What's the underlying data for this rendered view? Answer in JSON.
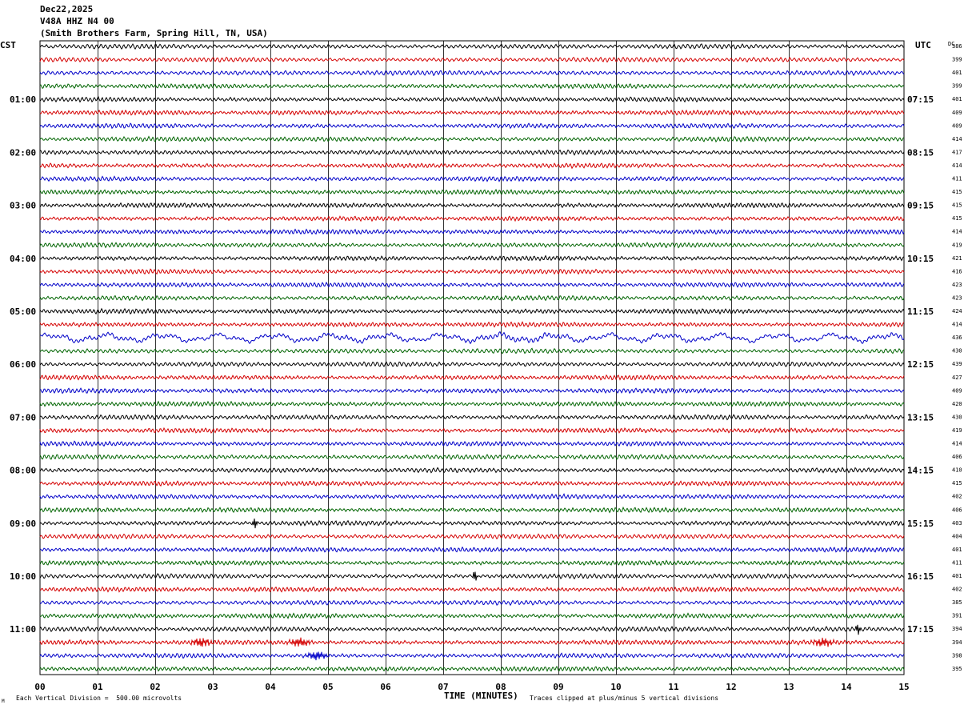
{
  "header": {
    "date": "Dec22,2025",
    "station": "V48A HHZ N4 00",
    "location": "(Smith Brothers Farm, Spring Hill, TN, USA)"
  },
  "labels": {
    "left_timezone": "CST",
    "right_timezone": "UTC",
    "dc_header": "DC",
    "x_axis_title": "TIME (MINUTES)",
    "scale_note": "Each Vertical Division =  500.00 microvolts",
    "clip_note": "Traces clipped at plus/minus 5 vertical divisions"
  },
  "colors": {
    "trace_cycle": [
      "#000000",
      "#d40000",
      "#0000c8",
      "#006400"
    ],
    "grid": "#000000",
    "background": "#ffffff"
  },
  "chart_data": {
    "type": "line",
    "subtype": "helicorder",
    "x_ticks": [
      "00",
      "01",
      "02",
      "03",
      "04",
      "05",
      "06",
      "07",
      "08",
      "09",
      "10",
      "11",
      "12",
      "13",
      "14",
      "15"
    ],
    "xlim": [
      0,
      15
    ],
    "xlabel": "TIME (MINUTES)",
    "traces_per_hour": 4,
    "left_hour_labels": [
      "01:00",
      "02:00",
      "03:00",
      "04:00",
      "05:00",
      "06:00",
      "07:00",
      "08:00",
      "09:00",
      "10:00",
      "11:00"
    ],
    "right_hour_labels": [
      "07:15",
      "08:15",
      "09:15",
      "10:15",
      "11:15",
      "12:15",
      "13:15",
      "14:15",
      "15:15",
      "16:15",
      "17:15"
    ],
    "dc_values": [
      386,
      399,
      401,
      399,
      401,
      409,
      409,
      414,
      417,
      414,
      411,
      415,
      415,
      415,
      414,
      419,
      421,
      416,
      423,
      423,
      424,
      414,
      436,
      430,
      439,
      427,
      409,
      420,
      430,
      419,
      414,
      406,
      410,
      415,
      402,
      406,
      403,
      404,
      401,
      411,
      401,
      402,
      385,
      391,
      394,
      394,
      398,
      395
    ],
    "events": [
      {
        "trace": 36,
        "minute": 3.73,
        "kind": "spike"
      },
      {
        "trace": 40,
        "minute": 7.55,
        "kind": "spike"
      },
      {
        "trace": 44,
        "minute": 14.2,
        "kind": "spike"
      },
      {
        "trace": 45,
        "minute": 2.8,
        "kind": "burst"
      },
      {
        "trace": 45,
        "minute": 4.5,
        "kind": "burst"
      },
      {
        "trace": 45,
        "minute": 13.6,
        "kind": "burst"
      },
      {
        "trace": 46,
        "minute": 4.8,
        "kind": "burst"
      }
    ],
    "noisy_traces": [
      22
    ]
  }
}
